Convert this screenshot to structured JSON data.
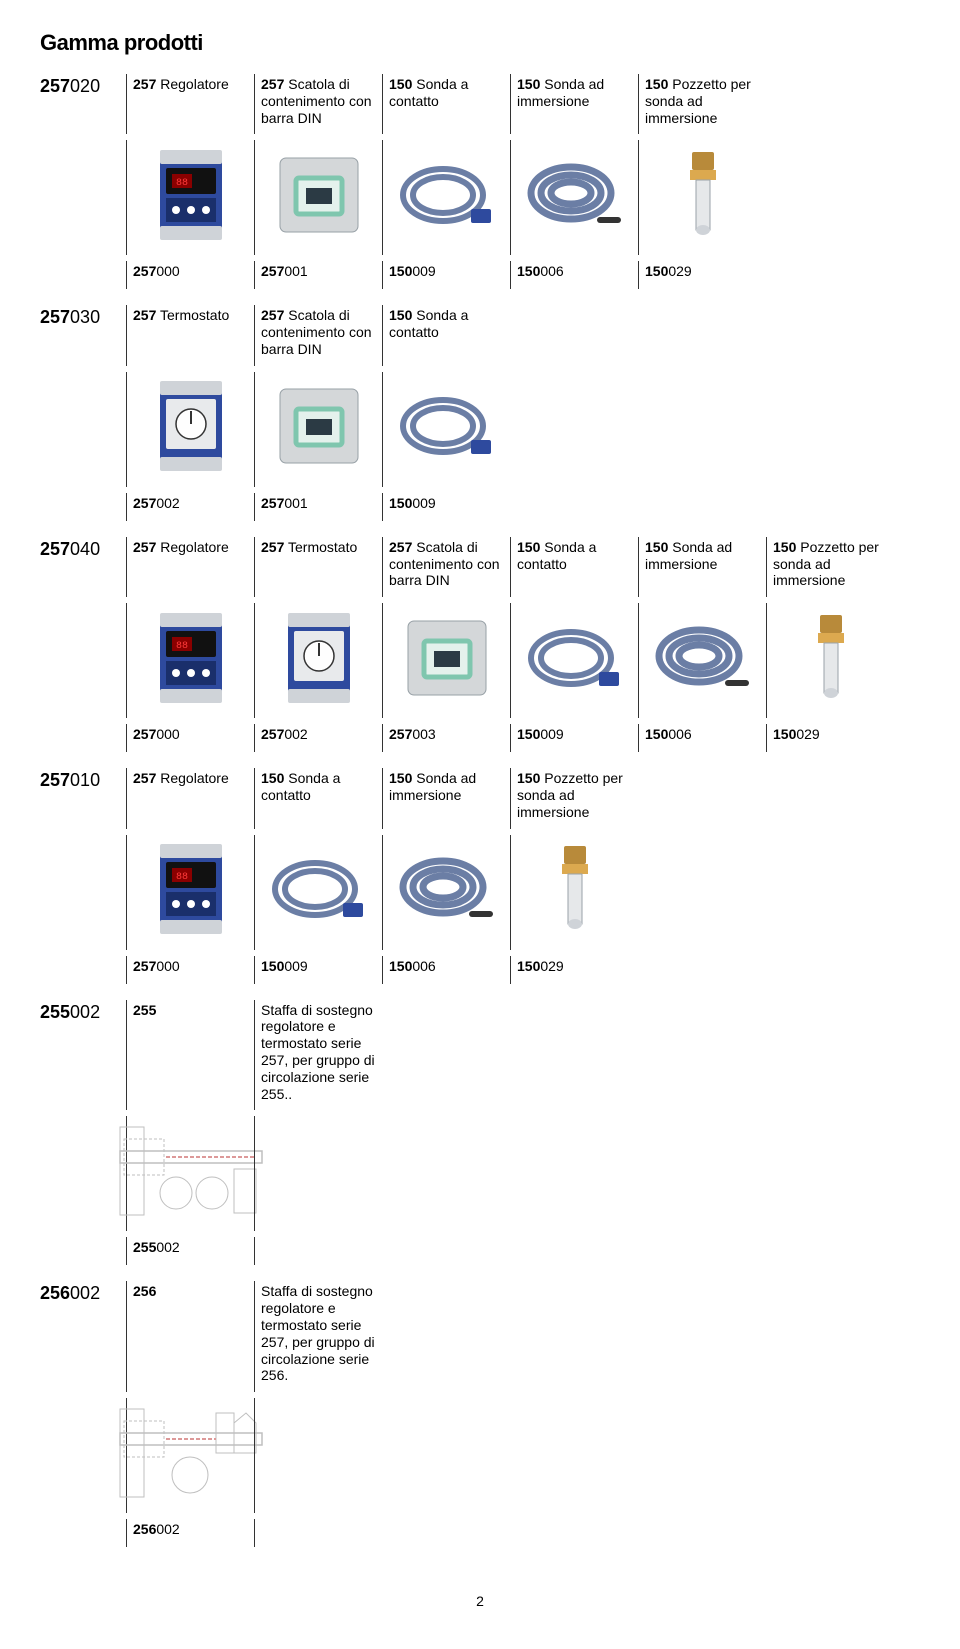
{
  "title": "Gamma prodotti",
  "pageNumber": "2",
  "cellWidth": 128,
  "colors": {
    "blueDevice": "#2e4a9e",
    "blueDeviceDark": "#1a2f6b",
    "boxGreen": "#7fc6ae",
    "boxGrey": "#d4d7d9",
    "cableBlue": "#6b7ea5",
    "brassGold": "#b88a3a",
    "outlineGrey": "#bfbfbf"
  },
  "kits": [
    {
      "code": {
        "bold": "257",
        "rest": "020"
      },
      "cells": [
        {
          "codeBold": "257",
          "codeRest": "",
          "name": "Regolatore",
          "img": "regolatore",
          "bottom": {
            "bold": "257",
            "rest": "000"
          }
        },
        {
          "codeBold": "257",
          "codeRest": "",
          "name": "Scatola di contenimento con barra DIN",
          "img": "scatola",
          "bottom": {
            "bold": "257",
            "rest": "001"
          }
        },
        {
          "codeBold": "150",
          "codeRest": "",
          "name": "Sonda a contatto",
          "img": "sonda-contatto",
          "bottom": {
            "bold": "150",
            "rest": "009"
          }
        },
        {
          "codeBold": "150",
          "codeRest": "",
          "name": "Sonda ad immersione",
          "img": "sonda-immersione",
          "bottom": {
            "bold": "150",
            "rest": "006"
          }
        },
        {
          "codeBold": "150",
          "codeRest": "",
          "name": "Pozzetto per sonda ad immersione",
          "img": "pozzetto",
          "bottom": {
            "bold": "150",
            "rest": "029"
          }
        }
      ]
    },
    {
      "code": {
        "bold": "257",
        "rest": "030"
      },
      "cells": [
        {
          "codeBold": "257",
          "codeRest": "",
          "name": "Termostato",
          "img": "termostato",
          "bottom": {
            "bold": "257",
            "rest": "002"
          }
        },
        {
          "codeBold": "257",
          "codeRest": "",
          "name": "Scatola di contenimento con barra DIN",
          "img": "scatola",
          "bottom": {
            "bold": "257",
            "rest": "001"
          }
        },
        {
          "codeBold": "150",
          "codeRest": "",
          "name": "Sonda a contatto",
          "img": "sonda-contatto",
          "bottom": {
            "bold": "150",
            "rest": "009"
          }
        }
      ]
    },
    {
      "code": {
        "bold": "257",
        "rest": "040"
      },
      "cells": [
        {
          "codeBold": "257",
          "codeRest": "",
          "name": "Regolatore",
          "img": "regolatore",
          "bottom": {
            "bold": "257",
            "rest": "000"
          }
        },
        {
          "codeBold": "257",
          "codeRest": "",
          "name": "Termostato",
          "img": "termostato",
          "bottom": {
            "bold": "257",
            "rest": "002"
          }
        },
        {
          "codeBold": "257",
          "codeRest": "",
          "name": "Scatola di contenimento con barra DIN",
          "img": "scatola",
          "bottom": {
            "bold": "257",
            "rest": "003"
          }
        },
        {
          "codeBold": "150",
          "codeRest": "",
          "name": "Sonda a contatto",
          "img": "sonda-contatto",
          "bottom": {
            "bold": "150",
            "rest": "009"
          }
        },
        {
          "codeBold": "150",
          "codeRest": "",
          "name": "Sonda ad immersione",
          "img": "sonda-immersione",
          "bottom": {
            "bold": "150",
            "rest": "006"
          }
        },
        {
          "codeBold": "150",
          "codeRest": "",
          "name": "Pozzetto per sonda ad immersione",
          "img": "pozzetto",
          "bottom": {
            "bold": "150",
            "rest": "029"
          }
        }
      ]
    },
    {
      "code": {
        "bold": "257",
        "rest": "010"
      },
      "cells": [
        {
          "codeBold": "257",
          "codeRest": "",
          "name": "Regolatore",
          "img": "regolatore",
          "bottom": {
            "bold": "257",
            "rest": "000"
          }
        },
        {
          "codeBold": "150",
          "codeRest": "",
          "name": "Sonda a contatto",
          "img": "sonda-contatto",
          "bottom": {
            "bold": "150",
            "rest": "009"
          }
        },
        {
          "codeBold": "150",
          "codeRest": "",
          "name": "Sonda ad immersione",
          "img": "sonda-immersione",
          "bottom": {
            "bold": "150",
            "rest": "006"
          }
        },
        {
          "codeBold": "150",
          "codeRest": "",
          "name": "Pozzetto per sonda ad immersione",
          "img": "pozzetto",
          "bottom": {
            "bold": "150",
            "rest": "029"
          }
        }
      ]
    },
    {
      "code": {
        "bold": "255",
        "rest": "002"
      },
      "cells": [
        {
          "codeBold": "255",
          "codeRest": "",
          "name": "",
          "img": "staffa",
          "bottom": {
            "bold": "255",
            "rest": "002"
          }
        },
        {
          "codeBold": "",
          "codeRest": "",
          "name": "Staffa di sostegno regolatore e termostato serie 257, per gruppo di circolazione serie 255..",
          "img": "",
          "bottom": null
        }
      ],
      "noBlankCodeRow": true
    },
    {
      "code": {
        "bold": "256",
        "rest": "002"
      },
      "cells": [
        {
          "codeBold": "256",
          "codeRest": "",
          "name": "",
          "img": "staffa2",
          "bottom": {
            "bold": "256",
            "rest": "002"
          }
        },
        {
          "codeBold": "",
          "codeRest": "",
          "name": "Staffa di sostegno regolatore e termostato serie 257, per gruppo di circolazione serie 256.",
          "img": "",
          "bottom": null
        }
      ],
      "noBlankCodeRow": true
    }
  ]
}
